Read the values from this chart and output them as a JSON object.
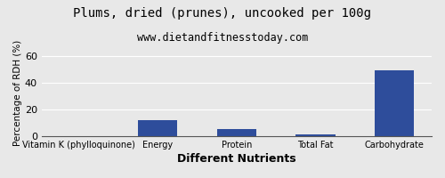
{
  "title": "Plums, dried (prunes), uncooked per 100g",
  "subtitle": "www.dietandfitnesstoday.com",
  "xlabel": "Different Nutrients",
  "ylabel": "Percentage of RDH (%)",
  "categories": [
    "Vitamin K (phylloquinone)",
    "Energy",
    "Protein",
    "Total Fat",
    "Carbohydrate"
  ],
  "values": [
    0.3,
    12,
    5,
    1.5,
    49
  ],
  "bar_color": "#2e4d9b",
  "ylim": [
    0,
    65
  ],
  "yticks": [
    0,
    20,
    40,
    60
  ],
  "background_color": "#e8e8e8",
  "plot_bg_color": "#e8e8e8",
  "title_fontsize": 10,
  "subtitle_fontsize": 8.5,
  "xlabel_fontsize": 9,
  "ylabel_fontsize": 7.5,
  "xtick_fontsize": 7,
  "ytick_fontsize": 8
}
